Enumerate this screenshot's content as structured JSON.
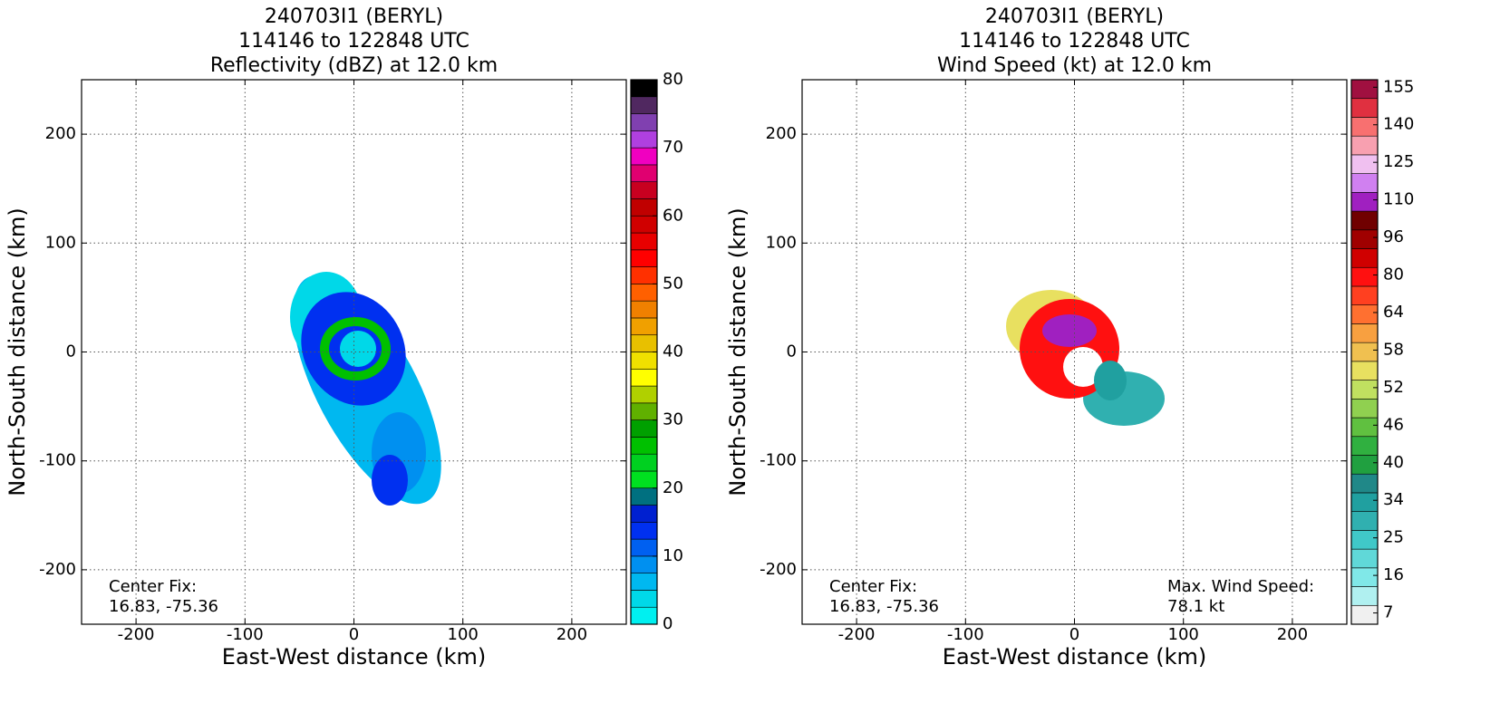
{
  "chart_data": [
    {
      "type": "heatmap",
      "title": [
        "240703I1 (BERYL)",
        "114146 to 122848 UTC",
        "Reflectivity (dBZ) at 12.0 km"
      ],
      "xlabel": "East-West distance (km)",
      "ylabel": "North-South distance (km)",
      "xlim": [
        -250,
        250
      ],
      "ylim": [
        -250,
        250
      ],
      "xticks": [
        -200,
        -100,
        0,
        100,
        200
      ],
      "yticks": [
        -200,
        -100,
        0,
        100,
        200
      ],
      "grid": true,
      "annotations": [
        {
          "lines": [
            "Center Fix:",
            "16.83, -75.36"
          ],
          "corner": "lower left"
        }
      ],
      "colorbar": {
        "lim": [
          0,
          80
        ],
        "ticks": [
          0,
          10,
          20,
          30,
          40,
          50,
          60,
          70,
          80
        ],
        "colors": [
          "#00f0f0",
          "#00d8e8",
          "#00b8f0",
          "#0090f0",
          "#0060f0",
          "#0030f0",
          "#0020d0",
          "#007080",
          "#00e020",
          "#00d020",
          "#00c000",
          "#00a000",
          "#60b000",
          "#b0d000",
          "#ffff00",
          "#f0e000",
          "#e8c000",
          "#f0a000",
          "#f08000",
          "#ff6000",
          "#ff3000",
          "#ff0000",
          "#e80000",
          "#d00000",
          "#c00000",
          "#c80020",
          "#e00070",
          "#f000c0",
          "#b040e0",
          "#8040b0",
          "#502860",
          "#000000"
        ]
      }
    },
    {
      "type": "heatmap",
      "title": [
        "240703I1 (BERYL)",
        "114146 to 122848 UTC",
        "Wind Speed (kt) at 12.0 km"
      ],
      "xlabel": "East-West distance (km)",
      "ylabel": "North-South distance (km)",
      "xlim": [
        -250,
        250
      ],
      "ylim": [
        -250,
        250
      ],
      "xticks": [
        -200,
        -100,
        0,
        100,
        200
      ],
      "yticks": [
        -200,
        -100,
        0,
        100,
        200
      ],
      "grid": true,
      "annotations": [
        {
          "lines": [
            "Center Fix:",
            "16.83, -75.36"
          ],
          "corner": "lower left"
        },
        {
          "lines": [
            "Max. Wind Speed:",
            "78.1 kt"
          ],
          "corner": "lower right"
        }
      ],
      "colorbar": {
        "spacing": "uniform",
        "ticks": [
          7,
          16,
          25,
          34,
          40,
          46,
          52,
          58,
          64,
          80,
          96,
          110,
          125,
          140,
          155
        ],
        "colors": [
          "#f0f0f0",
          "#b0f0f0",
          "#80e8e8",
          "#60d8d8",
          "#40c8c8",
          "#30b0b0",
          "#20a0a0",
          "#208888",
          "#20a040",
          "#30b040",
          "#60c040",
          "#90d050",
          "#c0e060",
          "#e8e060",
          "#f0c050",
          "#f8a040",
          "#ff7030",
          "#ff4020",
          "#ff1010",
          "#d00000",
          "#a00000",
          "#700000",
          "#a020c0",
          "#d080f0",
          "#f0c0f0",
          "#f8a0b0",
          "#f87070",
          "#e03040",
          "#a01040"
        ]
      }
    }
  ]
}
